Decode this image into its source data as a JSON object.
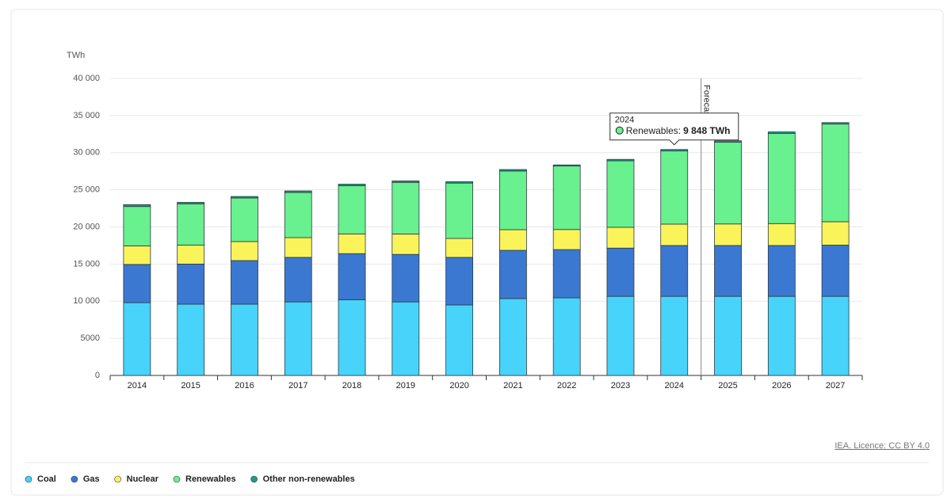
{
  "chart_data": {
    "type": "stacked_bar",
    "y_unit": "TWh",
    "categories": [
      "2014",
      "2015",
      "2016",
      "2017",
      "2018",
      "2019",
      "2020",
      "2021",
      "2022",
      "2023",
      "2024",
      "2025",
      "2026",
      "2027"
    ],
    "series": [
      {
        "name": "Coal",
        "color": "#48d3fa",
        "values": [
          9800,
          9600,
          9600,
          9900,
          10200,
          9900,
          9500,
          10350,
          10450,
          10650,
          10650,
          10650,
          10650,
          10650
        ]
      },
      {
        "name": "Gas",
        "color": "#3b78d1",
        "values": [
          5150,
          5400,
          5870,
          6000,
          6200,
          6400,
          6400,
          6500,
          6500,
          6500,
          6850,
          6850,
          6850,
          6900
        ]
      },
      {
        "name": "Nuclear",
        "color": "#fbf35a",
        "values": [
          2500,
          2560,
          2560,
          2660,
          2660,
          2750,
          2550,
          2780,
          2700,
          2800,
          2880,
          2900,
          2950,
          3150
        ]
      },
      {
        "name": "Renewables",
        "color": "#69f08f",
        "values": [
          5300,
          5550,
          5870,
          6080,
          6500,
          6950,
          7450,
          7900,
          8550,
          8950,
          9848,
          11000,
          12150,
          13150
        ]
      },
      {
        "name": "Other non-renewables",
        "color": "#1f9c8a",
        "values": [
          250,
          200,
          200,
          210,
          200,
          200,
          200,
          200,
          150,
          200,
          200,
          200,
          200,
          200
        ]
      }
    ],
    "ylim": [
      0,
      40000
    ],
    "yticks": [
      0,
      5000,
      {
        "value": 10000,
        "label": "10 000"
      },
      {
        "value": 15000,
        "label": "15 000"
      },
      {
        "value": 20000,
        "label": "20 000"
      },
      {
        "value": 25000,
        "label": "25 000"
      },
      {
        "value": 30000,
        "label": "30 000"
      },
      {
        "value": 35000,
        "label": "35 000"
      },
      {
        "value": 40000,
        "label": "40 000"
      }
    ],
    "grid": true,
    "forecast_label": "Forecast",
    "tooltip": {
      "title": "2024",
      "label": "Renewables:",
      "value": "9 848 TWh"
    },
    "source": "IEA. Licence: CC BY 4.0",
    "legend": "bottom-left"
  }
}
